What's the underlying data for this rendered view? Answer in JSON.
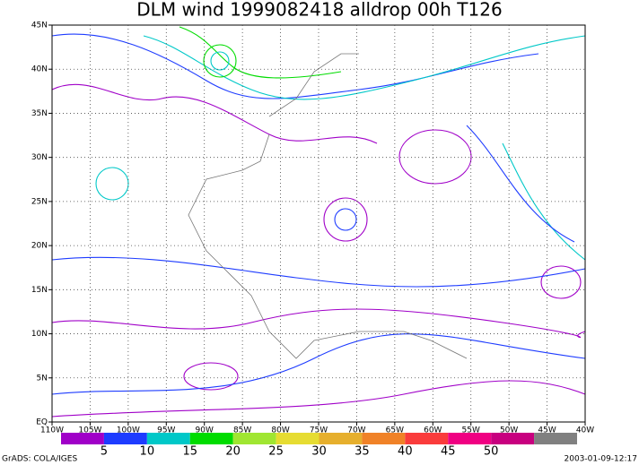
{
  "title": "DLM wind 1999082418 alldrop 00h T126",
  "map": {
    "x_labels": [
      "110W",
      "105W",
      "100W",
      "95W",
      "90W",
      "85W",
      "80W",
      "75W",
      "70W",
      "65W",
      "60W",
      "55W",
      "50W",
      "45W",
      "40W"
    ],
    "y_labels": [
      "EQ",
      "5N",
      "10N",
      "15N",
      "20N",
      "25N",
      "30N",
      "35N",
      "40N",
      "45N"
    ]
  },
  "colorbar": {
    "colors": [
      "#a000c8",
      "#1e3cff",
      "#00c8c8",
      "#00dc00",
      "#a0e632",
      "#e6dc32",
      "#e6af2d",
      "#f08228",
      "#fa3c3c",
      "#f00082",
      "#c8007f",
      "#808080"
    ],
    "labels": [
      5,
      10,
      15,
      20,
      25,
      30,
      35,
      40,
      45,
      50
    ]
  },
  "footer": {
    "left": "GrADS: COLA/IGES",
    "right": "2003-01-09-12:17"
  }
}
